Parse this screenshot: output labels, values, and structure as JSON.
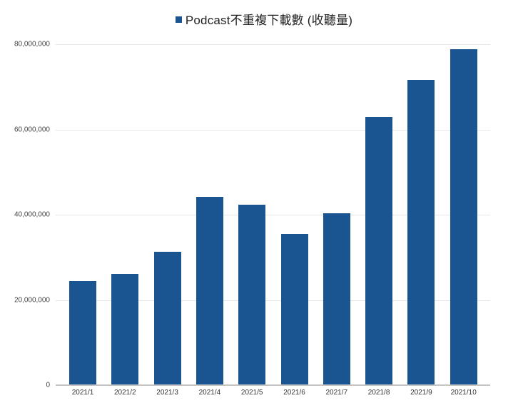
{
  "chart_data": {
    "type": "bar",
    "title": "",
    "legend": [
      {
        "name": "Podcast不重複下載數 (收聽量)",
        "color": "#1a5592"
      }
    ],
    "legend_position": "top",
    "categories": [
      "2021/1",
      "2021/2",
      "2021/3",
      "2021/4",
      "2021/5",
      "2021/6",
      "2021/7",
      "2021/8",
      "2021/9",
      "2021/10"
    ],
    "series": [
      {
        "name": "Podcast不重複下載數 (收聽量)",
        "values": [
          24300000,
          26000000,
          31100000,
          44100000,
          42200000,
          35400000,
          40100000,
          62800000,
          71500000,
          78700000
        ]
      }
    ],
    "xlabel": "",
    "ylabel": "",
    "ylim": [
      0,
      80000000
    ],
    "yticks": [
      0,
      20000000,
      40000000,
      60000000,
      80000000
    ],
    "ytick_labels": [
      "0",
      "20,000,000",
      "40,000,000",
      "60,000,000",
      "80,000,000"
    ],
    "grid": true
  },
  "legend": {
    "label": "Podcast不重複下載數 (收聽量)",
    "color": "#1a5592"
  },
  "colors": {
    "bar": "#1a5592",
    "grid": "#e6e6e6",
    "axis": "#c4c4c4"
  }
}
